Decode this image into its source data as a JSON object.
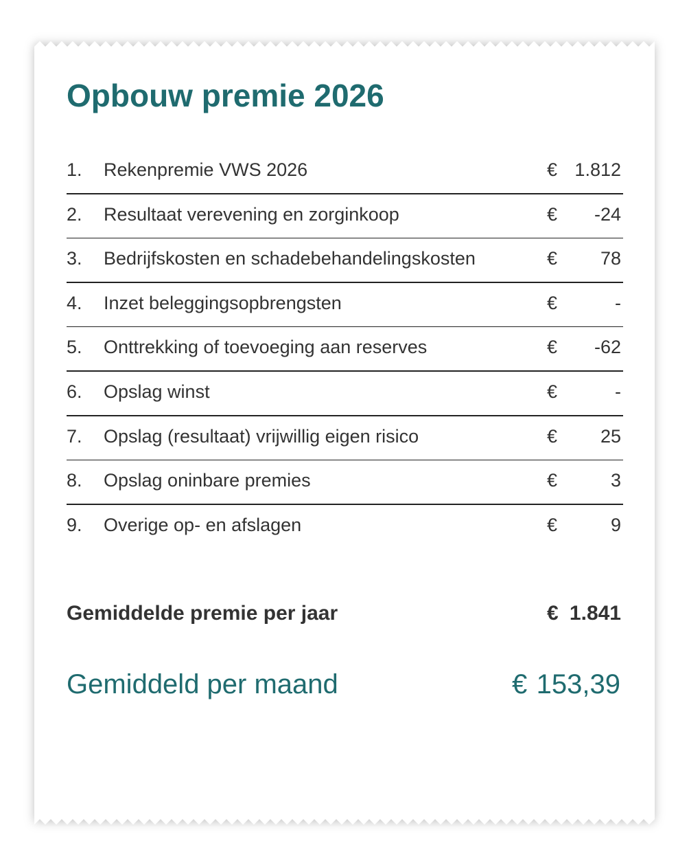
{
  "title": "Opbouw premie 2026",
  "rows": [
    {
      "number": "1.",
      "label": "Rekenpremie VWS 2026",
      "currency": "€",
      "amount": "1.812"
    },
    {
      "number": "2.",
      "label": "Resultaat verevening en zorginkoop",
      "currency": "€",
      "amount": "-24"
    },
    {
      "number": "3.",
      "label": "Bedrijfskosten en schadebehandelingskosten",
      "currency": "€",
      "amount": "78"
    },
    {
      "number": "4.",
      "label": "Inzet beleggingsopbrengsten",
      "currency": "€",
      "amount": "-"
    },
    {
      "number": "5.",
      "label": "Onttrekking of toevoeging aan reserves",
      "currency": "€",
      "amount": "-62"
    },
    {
      "number": "6.",
      "label": "Opslag winst",
      "currency": "€",
      "amount": "-"
    },
    {
      "number": "7.",
      "label": "Opslag (resultaat) vrijwillig eigen risico",
      "currency": "€",
      "amount": "25"
    },
    {
      "number": "8.",
      "label": "Opslag oninbare premies",
      "currency": "€",
      "amount": "3"
    },
    {
      "number": "9.",
      "label": "Overige op- en afslagen",
      "currency": "€",
      "amount": "9"
    }
  ],
  "year_total": {
    "label": "Gemiddelde premie per jaar",
    "currency": "€",
    "amount": "1.841"
  },
  "month_total": {
    "label": "Gemiddeld per maand",
    "currency": "€",
    "amount": "153,39"
  }
}
